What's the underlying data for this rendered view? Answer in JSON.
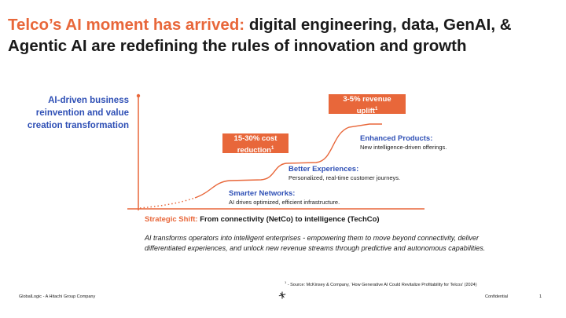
{
  "slide": {
    "title_highlight": "Telco’s AI moment has arrived:",
    "title_rest": " digital engineering, data, GenAI, & Agentic AI are redefining the rules of innovation and growth",
    "y_axis_label": "AI-driven business reinvention and value creation transformation",
    "callouts": [
      {
        "text": "15-30% cost reduction",
        "sup": "1"
      },
      {
        "text": "3-5% revenue uplift",
        "sup": "1"
      }
    ],
    "stages": [
      {
        "title": "Smarter Networks:",
        "desc": "AI drives optimized, efficient infrastructure."
      },
      {
        "title": "Better Experiences:",
        "desc": "Personalized, real-time customer journeys."
      },
      {
        "title": "Enhanced Products:",
        "desc": "New intelligence-driven offerings."
      }
    ],
    "shift_label": "Strategic Shift:",
    "shift_text": " From connectivity (NetCo) to intelligence (TechCo)",
    "body": "AI transforms operators into intelligent enterprises  - empowering them to move beyond connectivity, deliver differentiated experiences, and unlock new revenue streams through predictive and autonomous capabilities.",
    "source_sup": "1",
    "source": " - Source: McKinsey & Company, ‘How Generative AI Could Revitalize Profitability for Telcos’ (2024)",
    "footer_left": "GlobalLogic - A Hitachi Group Company",
    "footer_center": "Confidential",
    "page_number": "1"
  },
  "colors": {
    "accent": "#e8673a",
    "blue": "#2e4fb5",
    "text": "#1a1a1a"
  },
  "icons": {
    "logo": "globallogic-mark-icon"
  }
}
